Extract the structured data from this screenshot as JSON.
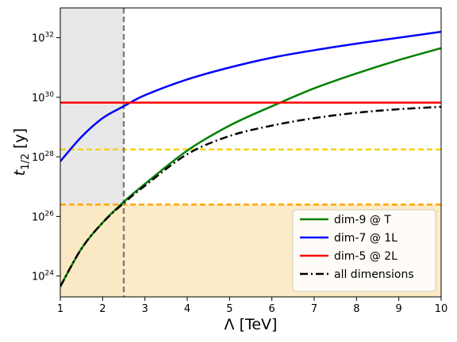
{
  "chart_data": {
    "type": "line",
    "xlabel": "Λ [TeV]",
    "ylabel_main": "t",
    "ylabel_sub": "1/2",
    "ylabel_unit": "[y]",
    "xlim": [
      1,
      10
    ],
    "ylim_log10": [
      23.3,
      33.0
    ],
    "y_scale": "log",
    "x_ticks": [
      1,
      2,
      3,
      4,
      5,
      6,
      7,
      8,
      9,
      10
    ],
    "x_tick_labels": [
      "1",
      "2",
      "3",
      "4",
      "5",
      "6",
      "7",
      "8",
      "9",
      "10"
    ],
    "y_ticks_log10": [
      24,
      26,
      28,
      30,
      32
    ],
    "y_tick_labels": [
      "24",
      "26",
      "28",
      "30",
      "32"
    ],
    "y_tick_base": "10",
    "grid": false,
    "legend_placement": "lower-right",
    "series": [
      {
        "name": "dim-9 @ T",
        "color": "#008000",
        "style": "solid",
        "x": [
          1.0,
          1.5,
          2.0,
          2.5,
          3.0,
          4.0,
          5.0,
          6.0,
          7.0,
          8.0,
          9.0,
          10.0
        ],
        "log10_y": [
          23.65,
          24.92,
          25.79,
          26.49,
          27.09,
          28.21,
          29.05,
          29.7,
          30.3,
          30.8,
          31.25,
          31.65
        ]
      },
      {
        "name": "dim-7 @ 1L",
        "color": "#0000ff",
        "style": "solid",
        "x": [
          1.0,
          1.5,
          2.0,
          2.5,
          3.0,
          4.0,
          5.0,
          6.0,
          7.0,
          8.0,
          9.0,
          10.0
        ],
        "log10_y": [
          27.85,
          28.67,
          29.3,
          29.7,
          30.07,
          30.6,
          31.0,
          31.33,
          31.58,
          31.8,
          32.0,
          32.2
        ]
      },
      {
        "name": "dim-5 @ 2L",
        "color": "#ff0000",
        "style": "solid",
        "x": [
          1.0,
          10.0
        ],
        "log10_y": [
          29.82,
          29.82
        ]
      },
      {
        "name": "all dimensions",
        "color": "#000000",
        "style": "dashdot",
        "x": [
          1.0,
          1.5,
          2.0,
          2.5,
          3.0,
          4.0,
          5.0,
          6.0,
          7.0,
          8.0,
          9.0,
          10.0
        ],
        "log10_y": [
          23.65,
          24.92,
          25.79,
          26.45,
          27.03,
          28.09,
          28.7,
          29.05,
          29.3,
          29.48,
          29.6,
          29.68
        ]
      }
    ],
    "reference_lines": [
      {
        "kind": "horizontal",
        "log10_y": 28.25,
        "color": "#f5d316",
        "style": "dashed"
      },
      {
        "kind": "horizontal",
        "log10_y": 26.4,
        "color": "#ffa500",
        "style": "dashed"
      },
      {
        "kind": "vertical",
        "x": 2.5,
        "color": "#808080",
        "style": "dashed"
      }
    ],
    "shaded_regions": [
      {
        "x_range": [
          1.0,
          2.5
        ],
        "log10_y_range": [
          23.3,
          33.0
        ],
        "color": "#d8d8d8"
      },
      {
        "x_range": [
          1.0,
          10.0
        ],
        "log10_y_range": [
          23.3,
          26.4
        ],
        "color": "#fde8c0"
      }
    ]
  }
}
